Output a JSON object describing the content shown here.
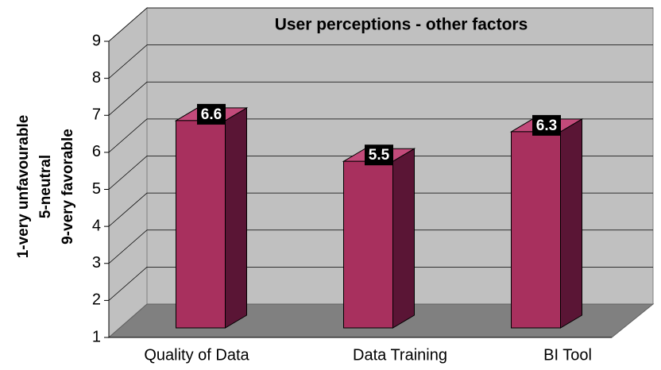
{
  "chart_data": {
    "type": "bar3d",
    "title": "User perceptions - other factors",
    "y_label": [
      "1-very unfavourable",
      "5-neutral",
      "9-very favorable"
    ],
    "categories": [
      "Quality of Data",
      "Data Training",
      "BI Tool"
    ],
    "values": [
      6.6,
      5.5,
      6.3
    ],
    "color": "#a8305e",
    "ylim": [
      1,
      9
    ],
    "yticks": [
      1,
      2,
      3,
      4,
      5,
      6,
      7,
      8,
      9
    ],
    "grid": true
  }
}
